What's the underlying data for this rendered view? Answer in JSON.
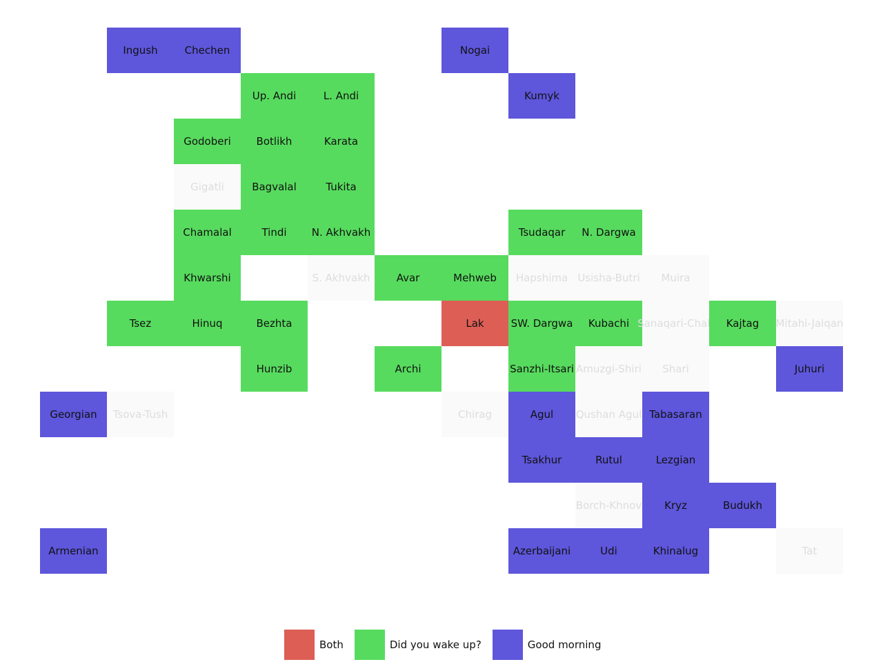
{
  "chart_data": {
    "type": "heatmap",
    "title": "",
    "colors": {
      "both": "#dd5e55",
      "wake": "#57db5e",
      "morning": "#5e56db",
      "none": "#fafafa"
    },
    "legend": {
      "placement": "bottom-center",
      "items": [
        {
          "key": "both",
          "label": "Both"
        },
        {
          "key": "wake",
          "label": "Did you wake up?"
        },
        {
          "key": "morning",
          "label": "Good morning"
        }
      ]
    },
    "grid": {
      "cols": 12,
      "rows": 12
    },
    "cells": [
      {
        "label": "Ingush",
        "col": 1,
        "row": 0,
        "cat": "morning"
      },
      {
        "label": "Chechen",
        "col": 2,
        "row": 0,
        "cat": "morning"
      },
      {
        "label": "Nogai",
        "col": 6,
        "row": 0,
        "cat": "morning"
      },
      {
        "label": "Up. Andi",
        "col": 3,
        "row": 1,
        "cat": "wake"
      },
      {
        "label": "L. Andi",
        "col": 4,
        "row": 1,
        "cat": "wake"
      },
      {
        "label": "Kumyk",
        "col": 7,
        "row": 1,
        "cat": "morning"
      },
      {
        "label": "Godoberi",
        "col": 2,
        "row": 2,
        "cat": "wake"
      },
      {
        "label": "Botlikh",
        "col": 3,
        "row": 2,
        "cat": "wake"
      },
      {
        "label": "Karata",
        "col": 4,
        "row": 2,
        "cat": "wake"
      },
      {
        "label": "Gigatli",
        "col": 2,
        "row": 3,
        "cat": "none"
      },
      {
        "label": "Bagvalal",
        "col": 3,
        "row": 3,
        "cat": "wake"
      },
      {
        "label": "Tukita",
        "col": 4,
        "row": 3,
        "cat": "wake"
      },
      {
        "label": "Chamalal",
        "col": 2,
        "row": 4,
        "cat": "wake"
      },
      {
        "label": "Tindi",
        "col": 3,
        "row": 4,
        "cat": "wake"
      },
      {
        "label": "N. Akhvakh",
        "col": 4,
        "row": 4,
        "cat": "wake"
      },
      {
        "label": "Tsudaqar",
        "col": 7,
        "row": 4,
        "cat": "wake"
      },
      {
        "label": "N. Dargwa",
        "col": 8,
        "row": 4,
        "cat": "wake"
      },
      {
        "label": "Khwarshi",
        "col": 2,
        "row": 5,
        "cat": "wake"
      },
      {
        "label": "S. Akhvakh",
        "col": 4,
        "row": 5,
        "cat": "none"
      },
      {
        "label": "Avar",
        "col": 5,
        "row": 5,
        "cat": "wake"
      },
      {
        "label": "Mehweb",
        "col": 6,
        "row": 5,
        "cat": "wake"
      },
      {
        "label": "Hapshima",
        "col": 7,
        "row": 5,
        "cat": "none"
      },
      {
        "label": "Usisha-Butri",
        "col": 8,
        "row": 5,
        "cat": "none"
      },
      {
        "label": "Muira",
        "col": 9,
        "row": 5,
        "cat": "none"
      },
      {
        "label": "Tsez",
        "col": 1,
        "row": 6,
        "cat": "wake"
      },
      {
        "label": "Hinuq",
        "col": 2,
        "row": 6,
        "cat": "wake"
      },
      {
        "label": "Bezhta",
        "col": 3,
        "row": 6,
        "cat": "wake"
      },
      {
        "label": "Lak",
        "col": 6,
        "row": 6,
        "cat": "both"
      },
      {
        "label": "SW. Dargwa",
        "col": 7,
        "row": 6,
        "cat": "wake"
      },
      {
        "label": "Kubachi",
        "col": 8,
        "row": 6,
        "cat": "wake"
      },
      {
        "label": "Sanaqari-Chah",
        "col": 9,
        "row": 6,
        "cat": "none"
      },
      {
        "label": "Kajtag",
        "col": 10,
        "row": 6,
        "cat": "wake"
      },
      {
        "label": "Mitahi-Jalqan",
        "col": 11,
        "row": 6,
        "cat": "none"
      },
      {
        "label": "Hunzib",
        "col": 3,
        "row": 7,
        "cat": "wake"
      },
      {
        "label": "Archi",
        "col": 5,
        "row": 7,
        "cat": "wake"
      },
      {
        "label": "Sanzhi-Itsari",
        "col": 7,
        "row": 7,
        "cat": "wake"
      },
      {
        "label": "Amuzgi-Shiri",
        "col": 8,
        "row": 7,
        "cat": "none"
      },
      {
        "label": "Shari",
        "col": 9,
        "row": 7,
        "cat": "none"
      },
      {
        "label": "Juhuri",
        "col": 11,
        "row": 7,
        "cat": "morning"
      },
      {
        "label": "Georgian",
        "col": 0,
        "row": 8,
        "cat": "morning"
      },
      {
        "label": "Tsova-Tush",
        "col": 1,
        "row": 8,
        "cat": "none"
      },
      {
        "label": "Chirag",
        "col": 6,
        "row": 8,
        "cat": "none"
      },
      {
        "label": "Agul",
        "col": 7,
        "row": 8,
        "cat": "morning"
      },
      {
        "label": "Qushan Agul",
        "col": 8,
        "row": 8,
        "cat": "none"
      },
      {
        "label": "Tabasaran",
        "col": 9,
        "row": 8,
        "cat": "morning"
      },
      {
        "label": "Tsakhur",
        "col": 7,
        "row": 9,
        "cat": "morning"
      },
      {
        "label": "Rutul",
        "col": 8,
        "row": 9,
        "cat": "morning"
      },
      {
        "label": "Lezgian",
        "col": 9,
        "row": 9,
        "cat": "morning"
      },
      {
        "label": "Borch-Khnov",
        "col": 8,
        "row": 10,
        "cat": "none"
      },
      {
        "label": "Kryz",
        "col": 9,
        "row": 10,
        "cat": "morning"
      },
      {
        "label": "Budukh",
        "col": 10,
        "row": 10,
        "cat": "morning"
      },
      {
        "label": "Armenian",
        "col": 0,
        "row": 11,
        "cat": "morning"
      },
      {
        "label": "Azerbaijani",
        "col": 7,
        "row": 11,
        "cat": "morning"
      },
      {
        "label": "Udi",
        "col": 8,
        "row": 11,
        "cat": "morning"
      },
      {
        "label": "Khinalug",
        "col": 9,
        "row": 11,
        "cat": "morning"
      },
      {
        "label": "Tat",
        "col": 11,
        "row": 11,
        "cat": "none"
      }
    ]
  }
}
